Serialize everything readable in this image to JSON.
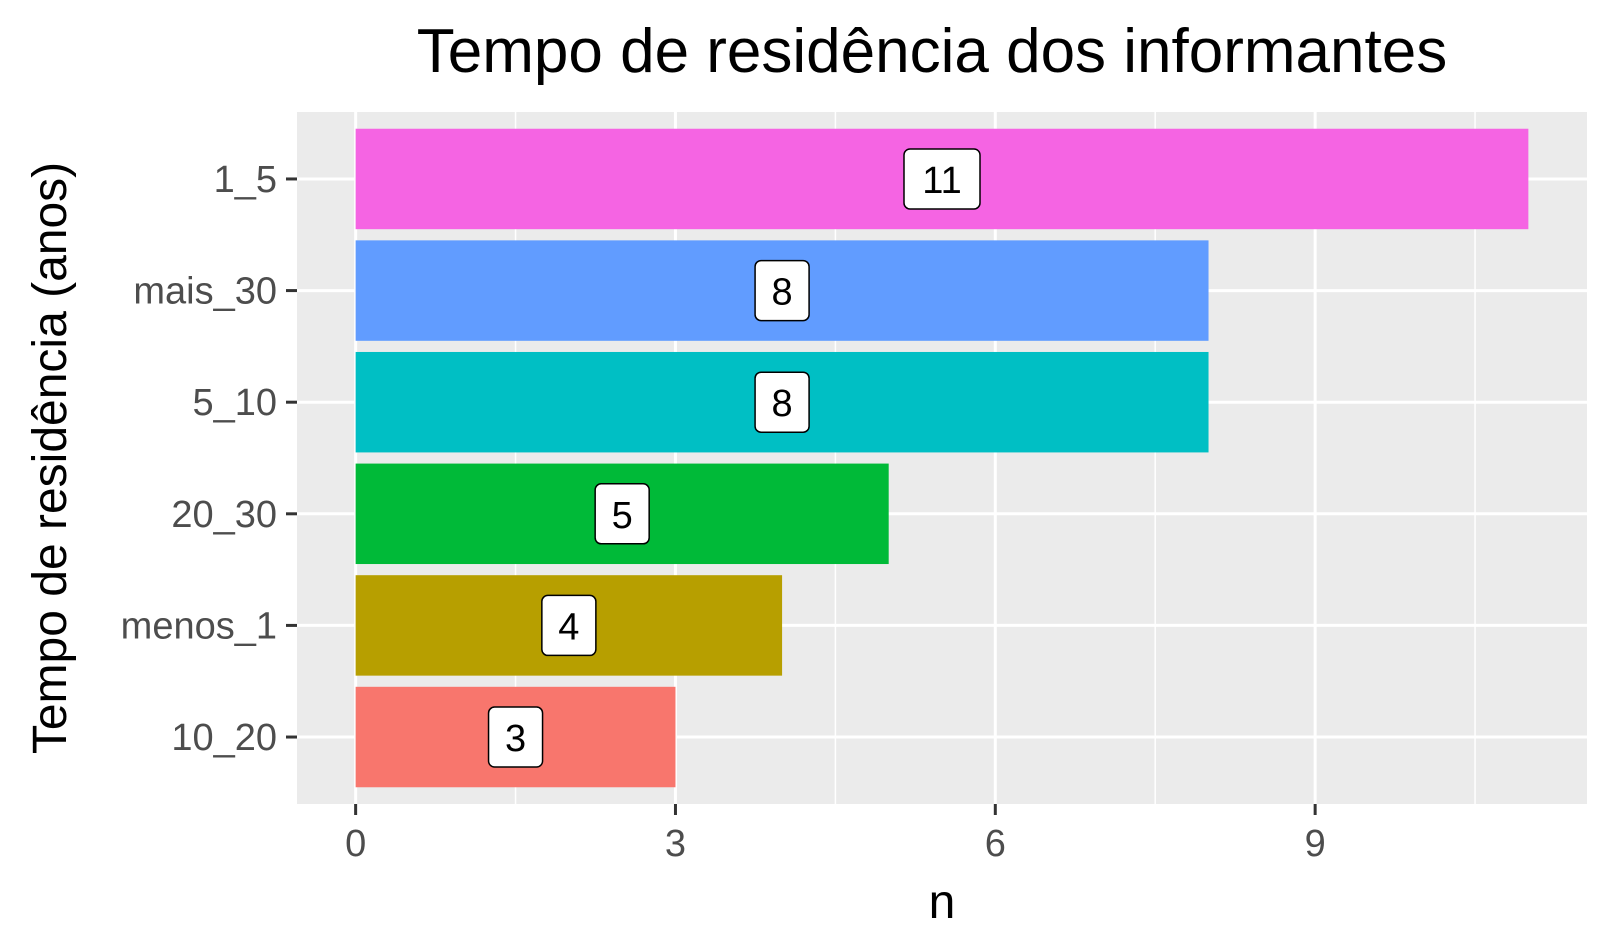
{
  "chart_data": {
    "type": "bar",
    "orientation": "horizontal",
    "title": "Tempo de residência dos informantes",
    "xlabel": "n",
    "ylabel": "Tempo de residência (anos)",
    "categories": [
      "1_5",
      "mais_30",
      "5_10",
      "20_30",
      "menos_1",
      "10_20"
    ],
    "values": [
      11,
      8,
      8,
      5,
      4,
      3
    ],
    "colors": [
      "#F564E3",
      "#619CFF",
      "#00BFC4",
      "#00BA38",
      "#B79F00",
      "#F8766D"
    ],
    "xlim": [
      -0.55,
      11.55
    ],
    "xticks": [
      0,
      3,
      6,
      9
    ],
    "grid": true,
    "legend": "none",
    "panel_background": "#EBEBEB",
    "grid_color": "#FFFFFF"
  }
}
